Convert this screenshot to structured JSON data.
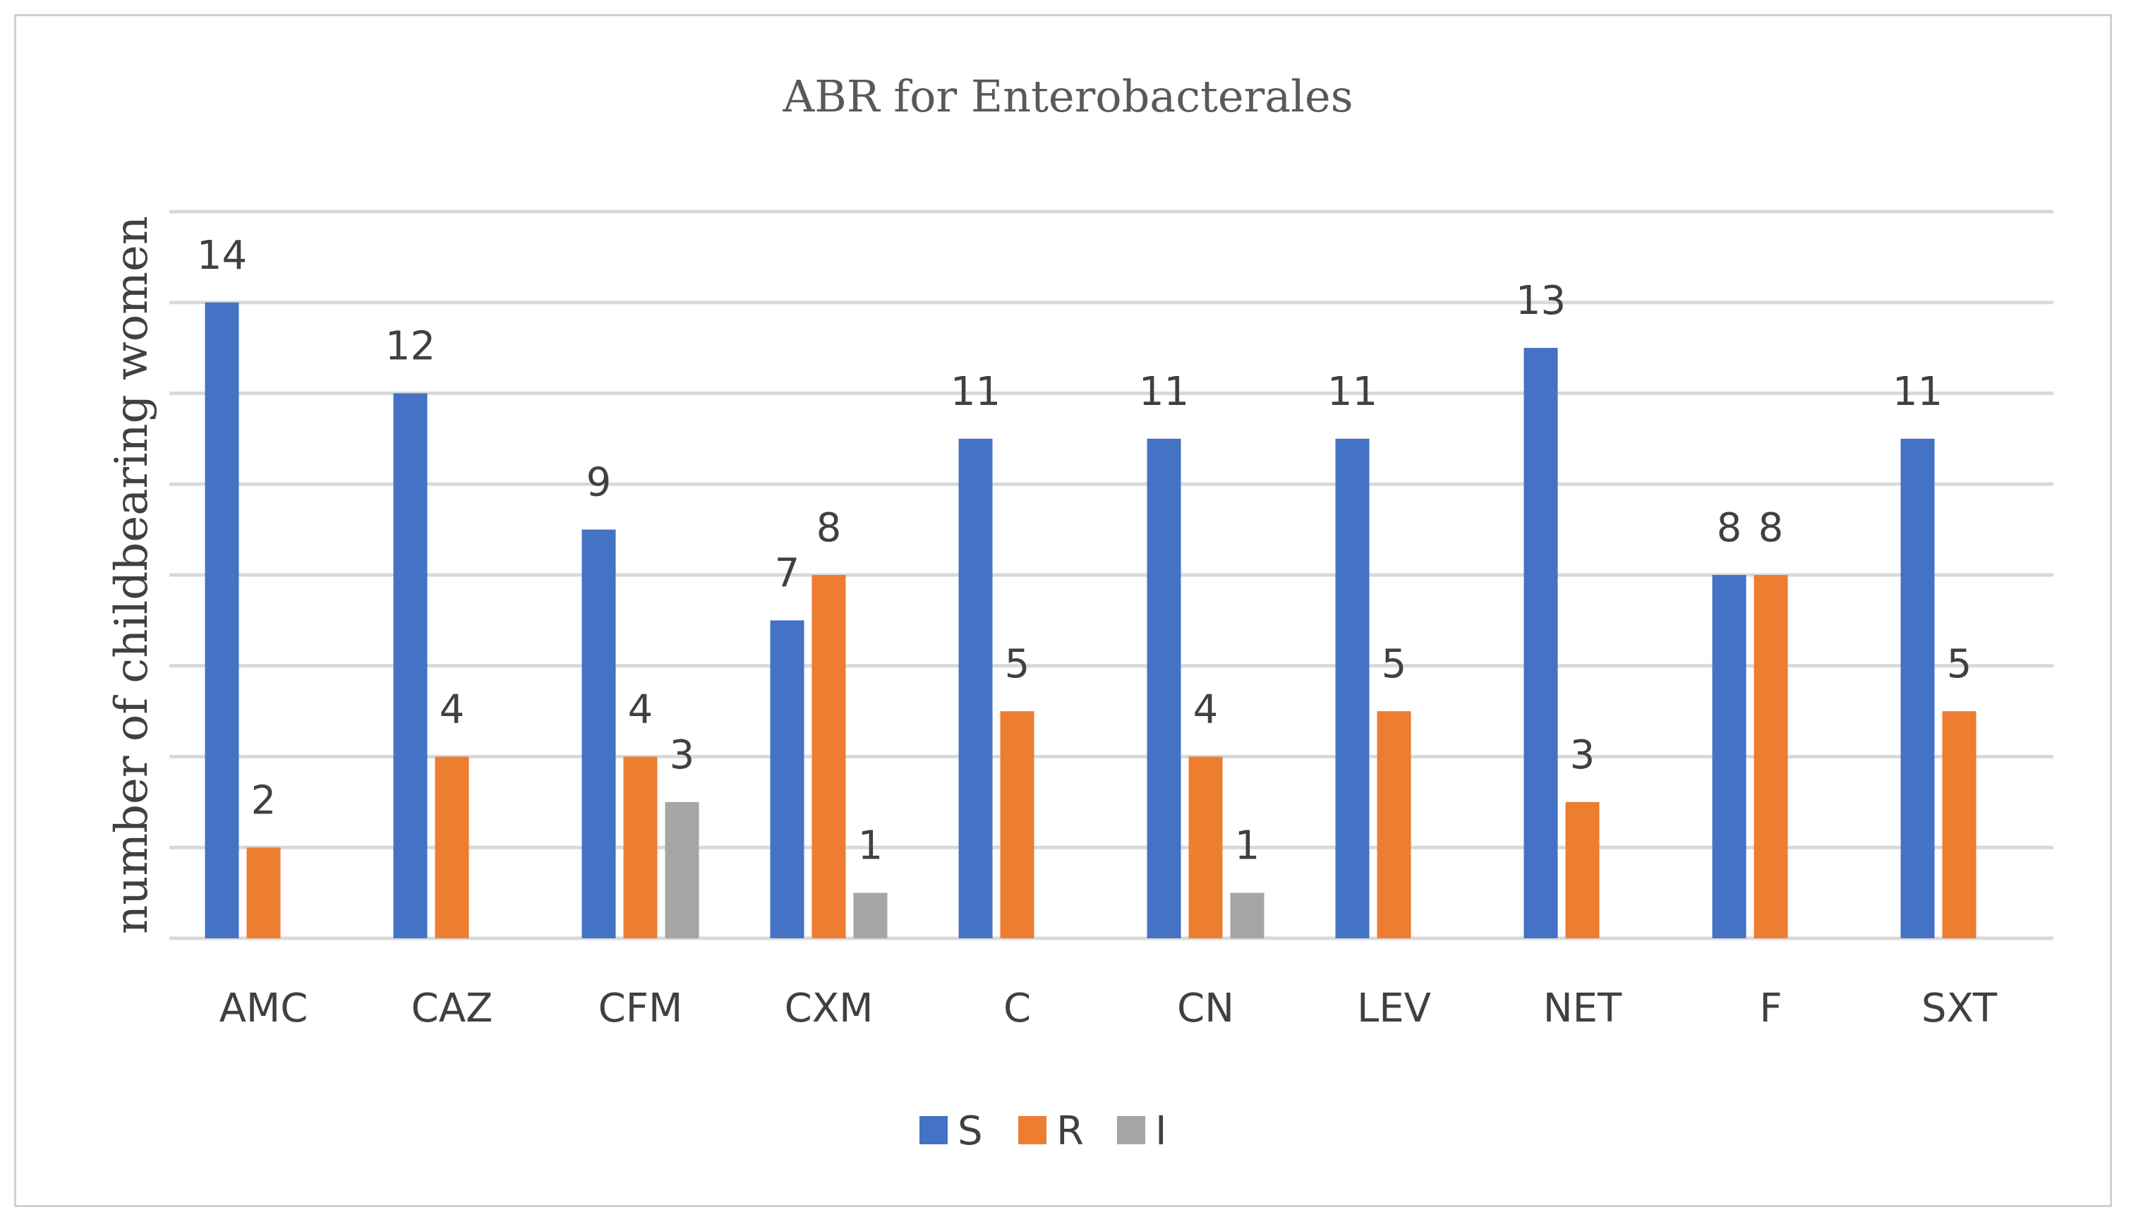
{
  "chart_data": {
    "type": "bar",
    "title": "ABR for Enterobacterales",
    "xlabel": "",
    "ylabel": "number of childbearing women",
    "ylim": [
      0,
      16
    ],
    "gridlines": true,
    "legend_position": "bottom",
    "categories": [
      "AMC",
      "CAZ",
      "CFM",
      "CXM",
      "C",
      "CN",
      "LEV",
      "NET",
      "F",
      "SXT"
    ],
    "series": [
      {
        "name": "S",
        "color": "#4472c4",
        "values": [
          14,
          12,
          9,
          7,
          11,
          11,
          11,
          13,
          8,
          11
        ]
      },
      {
        "name": "R",
        "color": "#ed7d31",
        "values": [
          2,
          4,
          4,
          8,
          5,
          4,
          5,
          3,
          8,
          5
        ]
      },
      {
        "name": "I",
        "color": "#a5a5a5",
        "values": [
          null,
          null,
          3,
          1,
          null,
          1,
          null,
          null,
          null,
          null
        ]
      }
    ]
  }
}
